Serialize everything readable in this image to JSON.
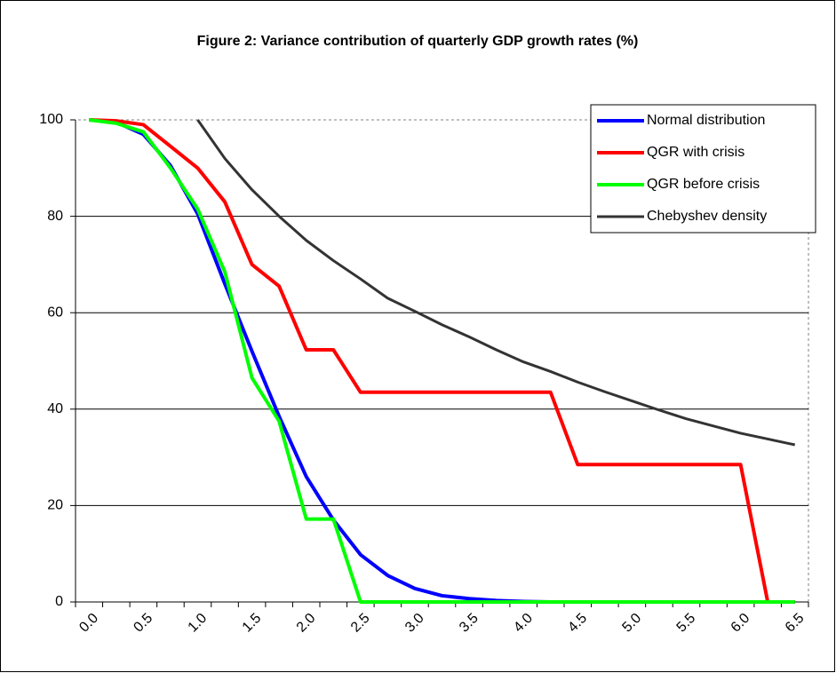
{
  "chart_data": {
    "type": "line",
    "title": "Figure 2: Variance contribution of quarterly GDP growth rates (%)",
    "categories": [
      "0.0",
      null,
      "0.5",
      null,
      "1.0",
      null,
      "1.5",
      null,
      "2.0",
      null,
      "2.5",
      null,
      "3.0",
      null,
      "3.5",
      null,
      "4.0",
      null,
      "4.5",
      null,
      "5.0",
      null,
      "5.5",
      null,
      "6.0",
      null,
      "6.5"
    ],
    "series": [
      {
        "name": "Normal distribution",
        "color": "#0000ff",
        "values": [
          100,
          99.5,
          97,
          90.5,
          80.5,
          66,
          52,
          38.5,
          26,
          17,
          9.8,
          5.5,
          2.8,
          1.3,
          0.7,
          0.3,
          0.1,
          0,
          0,
          0,
          0,
          0,
          0,
          0,
          0,
          0,
          0
        ]
      },
      {
        "name": "QGR with crisis",
        "color": "#ff0000",
        "values": [
          100,
          99.8,
          99,
          94.5,
          90,
          83,
          70,
          65.5,
          52.3,
          52.3,
          43.5,
          43.5,
          43.5,
          43.5,
          43.5,
          43.5,
          43.5,
          43.5,
          28.5,
          28.5,
          28.5,
          28.5,
          28.5,
          28.5,
          28.5,
          0,
          0
        ]
      },
      {
        "name": "QGR before crisis",
        "color": "#00ff00",
        "values": [
          100,
          99.3,
          97.5,
          90,
          81.5,
          68.5,
          46.5,
          37.5,
          17.2,
          17.2,
          0,
          0,
          0,
          0,
          0,
          0,
          0,
          0,
          0,
          0,
          0,
          0,
          0,
          0,
          0,
          0,
          0
        ]
      },
      {
        "name": "Chebyshev density",
        "color": "#333333",
        "values": [
          null,
          null,
          null,
          null,
          100,
          92,
          85.5,
          80,
          75,
          70.8,
          67,
          63,
          60.3,
          57.5,
          55,
          52.3,
          49.8,
          47.8,
          45.6,
          43.6,
          41.7,
          39.8,
          38,
          36.5,
          35,
          33.8,
          32.6
        ]
      }
    ],
    "ylim": [
      0,
      100
    ],
    "yticks": [
      0,
      20,
      40,
      60,
      80,
      100
    ],
    "grid": true,
    "legend": "top-right"
  }
}
